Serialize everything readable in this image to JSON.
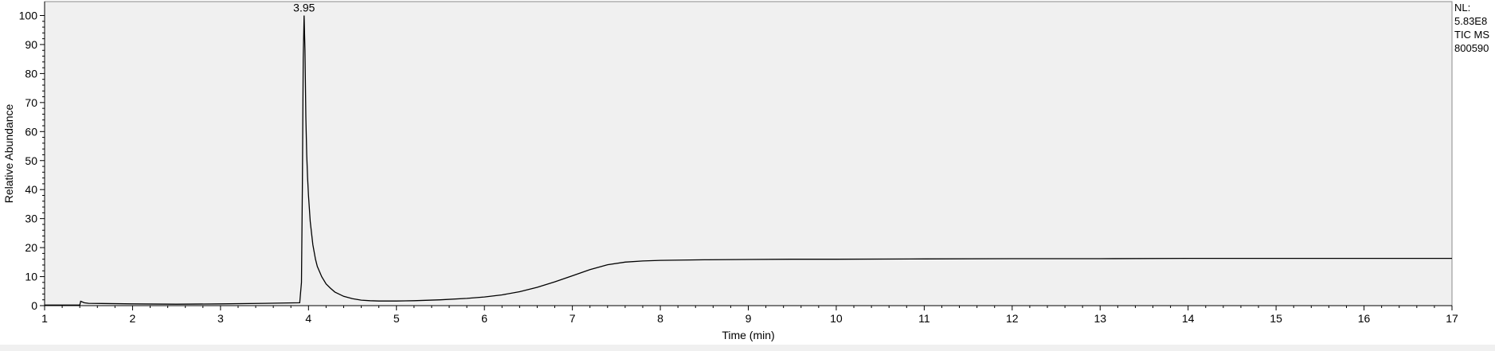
{
  "chart_data": {
    "type": "line",
    "xlabel": "Time (min)",
    "ylabel": "Relative Abundance",
    "xlim": [
      1,
      17
    ],
    "ylim": [
      0,
      100
    ],
    "x_ticks": [
      1,
      2,
      3,
      4,
      5,
      6,
      7,
      8,
      9,
      10,
      11,
      12,
      13,
      14,
      15,
      16,
      17
    ],
    "y_ticks": [
      0,
      10,
      20,
      30,
      40,
      50,
      60,
      70,
      80,
      90,
      100
    ],
    "grid": false,
    "background_color": "#f0f0f0",
    "line_color": "#000000",
    "peak_labels": [
      {
        "x": 3.95,
        "y": 100,
        "text": "3.95"
      }
    ],
    "info_text": [
      "NL:",
      "5.83E8",
      "TIC  MS",
      "800590"
    ],
    "series": [
      {
        "x": [
          1.0,
          1.4,
          1.41,
          1.45,
          1.5,
          2.0,
          2.5,
          3.0,
          3.5,
          3.9,
          3.92,
          3.93,
          3.94,
          3.95,
          3.96,
          3.97,
          3.98,
          3.99,
          4.0,
          4.02,
          4.05,
          4.08,
          4.1,
          4.15,
          4.2,
          4.25,
          4.3,
          4.4,
          4.5,
          4.6,
          4.7,
          4.8,
          5.0,
          5.2,
          5.5,
          5.8,
          6.0,
          6.2,
          6.4,
          6.6,
          6.8,
          7.0,
          7.2,
          7.4,
          7.6,
          7.8,
          8.0,
          8.5,
          9.0,
          9.5,
          10.0,
          11.0,
          12.0,
          13.0,
          14.0,
          15.0,
          16.0,
          17.0
        ],
        "y": [
          0.2,
          0.2,
          1.5,
          1.0,
          0.8,
          0.6,
          0.5,
          0.6,
          0.8,
          1.0,
          8,
          40,
          85,
          100,
          88,
          65,
          52,
          44,
          38,
          29,
          21,
          16,
          13.5,
          10,
          7.5,
          6,
          4.7,
          3.2,
          2.4,
          1.9,
          1.7,
          1.6,
          1.6,
          1.7,
          2.0,
          2.5,
          3.0,
          3.7,
          4.8,
          6.3,
          8.2,
          10.3,
          12.4,
          14.1,
          15.0,
          15.4,
          15.6,
          15.8,
          15.9,
          16.0,
          16.0,
          16.1,
          16.2,
          16.2,
          16.3,
          16.3,
          16.3,
          16.3
        ]
      }
    ]
  }
}
